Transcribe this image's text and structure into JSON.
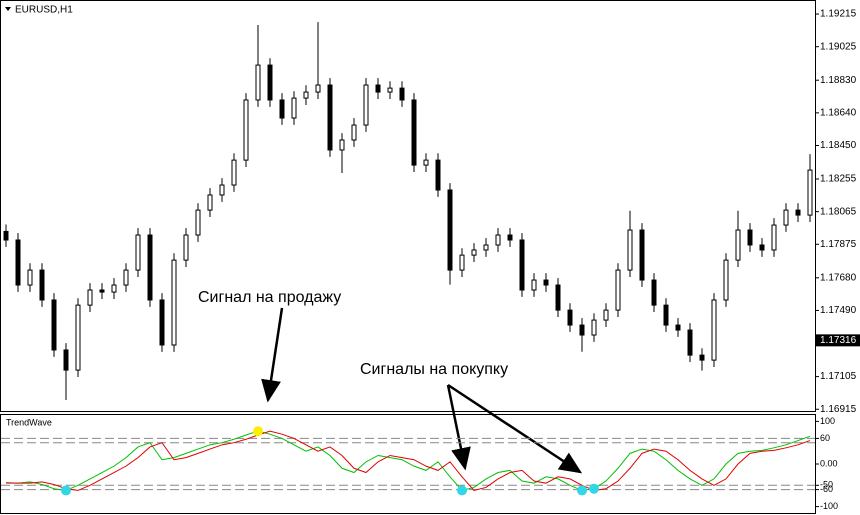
{
  "chart_data": [
    {
      "type": "candlestick",
      "title": "EURUSD,H1",
      "up_color": "#ffffff",
      "down_color": "#000000",
      "wick_color": "#000000",
      "ylim": [
        1.16899,
        1.19291
      ],
      "yticks": [
        1.19215,
        1.19025,
        {
          "value": 1.1883,
          "label": "1.18830"
        },
        {
          "value": 1.1864,
          "label": "1.18640"
        },
        {
          "value": 1.1845,
          "label": "1.18450"
        },
        1.18255,
        1.18065,
        1.17875,
        {
          "value": 1.1768,
          "label": "1.17680"
        },
        {
          "value": 1.1749,
          "label": "1.17490"
        },
        1.17105,
        1.16915
      ],
      "last_price": 1.17316,
      "annotations": [
        "Сигнал на продажу",
        "Сигналы на покупку"
      ],
      "ohlc": [
        [
          1.1795,
          1.1799,
          1.1786,
          1.179
        ],
        [
          1.179,
          1.1794,
          1.17598,
          1.17638
        ],
        [
          1.17638,
          1.17765,
          1.17598,
          1.17725
        ],
        [
          1.17725,
          1.17765,
          1.17511,
          1.17551
        ],
        [
          1.17551,
          1.17591,
          1.1722,
          1.1726
        ],
        [
          1.1726,
          1.173,
          1.16969,
          1.17143
        ],
        [
          1.17143,
          1.17561,
          1.17103,
          1.17521
        ],
        [
          1.17521,
          1.17649,
          1.17481,
          1.17609
        ],
        [
          1.17609,
          1.17649,
          1.17557,
          1.17597
        ],
        [
          1.17597,
          1.17678,
          1.17557,
          1.17638
        ],
        [
          1.17638,
          1.17765,
          1.17598,
          1.17725
        ],
        [
          1.17725,
          1.17969,
          1.17685,
          1.17929
        ],
        [
          1.17929,
          1.17969,
          1.17511,
          1.17551
        ],
        [
          1.17551,
          1.17591,
          1.17249,
          1.17289
        ],
        [
          1.17289,
          1.17823,
          1.17249,
          1.17783
        ],
        [
          1.17783,
          1.17969,
          1.17743,
          1.17929
        ],
        [
          1.17929,
          1.18114,
          1.17889,
          1.18074
        ],
        [
          1.18074,
          1.18202,
          1.18034,
          1.18162
        ],
        [
          1.18162,
          1.1826,
          1.18122,
          1.1822
        ],
        [
          1.1822,
          1.18405,
          1.1818,
          1.18365
        ],
        [
          1.18365,
          1.18755,
          1.18325,
          1.18715
        ],
        [
          1.18715,
          1.19151,
          1.18675,
          1.18918
        ],
        [
          1.18918,
          1.18958,
          1.18675,
          1.18715
        ],
        [
          1.18715,
          1.18755,
          1.1857,
          1.1861
        ],
        [
          1.1861,
          1.18766,
          1.1857,
          1.18726
        ],
        [
          1.18726,
          1.18801,
          1.18686,
          1.18761
        ],
        [
          1.18761,
          1.19168,
          1.18721,
          1.18802
        ],
        [
          1.18802,
          1.18842,
          1.18384,
          1.18424
        ],
        [
          1.18424,
          1.18522,
          1.1829,
          1.18482
        ],
        [
          1.18482,
          1.18609,
          1.18442,
          1.18569
        ],
        [
          1.18569,
          1.18842,
          1.18529,
          1.18802
        ],
        [
          1.18802,
          1.18842,
          1.18721,
          1.18761
        ],
        [
          1.18761,
          1.18824,
          1.18721,
          1.18784
        ],
        [
          1.18784,
          1.18824,
          1.18675,
          1.18715
        ],
        [
          1.18715,
          1.18755,
          1.18296,
          1.18336
        ],
        [
          1.18336,
          1.18405,
          1.18296,
          1.18365
        ],
        [
          1.18365,
          1.18405,
          1.18151,
          1.18191
        ],
        [
          1.18191,
          1.18231,
          1.1764,
          1.17725
        ],
        [
          1.17725,
          1.17852,
          1.17685,
          1.17812
        ],
        [
          1.17812,
          1.17882,
          1.17772,
          1.17842
        ],
        [
          1.17842,
          1.17911,
          1.17802,
          1.17871
        ],
        [
          1.17871,
          1.17969,
          1.17831,
          1.17929
        ],
        [
          1.17929,
          1.17969,
          1.1786,
          1.179
        ],
        [
          1.179,
          1.1794,
          1.17569,
          1.17609
        ],
        [
          1.17609,
          1.17707,
          1.17569,
          1.17667
        ],
        [
          1.17667,
          1.17707,
          1.17598,
          1.17638
        ],
        [
          1.17638,
          1.17678,
          1.17452,
          1.17492
        ],
        [
          1.17492,
          1.17532,
          1.17365,
          1.17405
        ],
        [
          1.17405,
          1.17445,
          1.1725,
          1.17347
        ],
        [
          1.17347,
          1.17474,
          1.17307,
          1.17434
        ],
        [
          1.17434,
          1.17532,
          1.17394,
          1.17492
        ],
        [
          1.17492,
          1.17765,
          1.17452,
          1.17725
        ],
        [
          1.17725,
          1.1807,
          1.17685,
          1.17958
        ],
        [
          1.17958,
          1.17998,
          1.17627,
          1.17667
        ],
        [
          1.17667,
          1.17707,
          1.17481,
          1.17521
        ],
        [
          1.17521,
          1.17561,
          1.17365,
          1.17405
        ],
        [
          1.17405,
          1.17445,
          1.17336,
          1.17376
        ],
        [
          1.17376,
          1.17416,
          1.1719,
          1.1723
        ],
        [
          1.1723,
          1.1727,
          1.1714,
          1.17201
        ],
        [
          1.17201,
          1.17591,
          1.17161,
          1.17551
        ],
        [
          1.17551,
          1.17823,
          1.17511,
          1.17783
        ],
        [
          1.17783,
          1.1807,
          1.17743,
          1.17958
        ],
        [
          1.17958,
          1.17998,
          1.17831,
          1.17871
        ],
        [
          1.17871,
          1.17911,
          1.17802,
          1.17842
        ],
        [
          1.17842,
          1.18027,
          1.17802,
          1.17987
        ],
        [
          1.17987,
          1.18114,
          1.17947,
          1.18074
        ],
        [
          1.18074,
          1.18114,
          1.18005,
          1.18045
        ],
        [
          1.18045,
          1.184,
          1.18005,
          1.18307
        ]
      ]
    },
    {
      "type": "line",
      "title": "TrendWave",
      "ylim": [
        -115,
        115
      ],
      "yticks": [
        100,
        60,
        {
          "value": 0,
          "label": "0.00"
        },
        -50,
        -60,
        -100
      ],
      "levels": [
        60,
        50,
        -50,
        -60
      ],
      "series": [
        {
          "color": "#00c000",
          "values": [
            -45,
            -45,
            -42,
            -48,
            -58,
            -62,
            -50,
            -35,
            -20,
            -5,
            15,
            40,
            50,
            10,
            15,
            25,
            35,
            45,
            50,
            58,
            68,
            77,
            70,
            60,
            45,
            30,
            40,
            20,
            -10,
            -20,
            5,
            20,
            15,
            10,
            -5,
            -15,
            5,
            -30,
            -62,
            -55,
            -35,
            -20,
            -15,
            -40,
            -45,
            -30,
            -35,
            -50,
            -62,
            -58,
            -40,
            -10,
            25,
            35,
            30,
            10,
            -15,
            -35,
            -50,
            -35,
            0,
            25,
            30,
            32,
            38,
            45,
            55,
            65
          ]
        },
        {
          "color": "#e00000",
          "values": [
            -44,
            -45,
            -45,
            -42,
            -48,
            -58,
            -62,
            -50,
            -35,
            -20,
            -5,
            15,
            40,
            50,
            10,
            15,
            25,
            35,
            45,
            50,
            58,
            68,
            77,
            70,
            60,
            45,
            30,
            40,
            20,
            -10,
            -20,
            5,
            20,
            15,
            10,
            -5,
            -15,
            5,
            -30,
            -62,
            -55,
            -35,
            -20,
            -15,
            -40,
            -45,
            -30,
            -35,
            -50,
            -62,
            -58,
            -40,
            -10,
            25,
            35,
            30,
            10,
            -15,
            -35,
            -50,
            -35,
            0,
            25,
            30,
            32,
            38,
            45,
            55
          ]
        }
      ],
      "dots": [
        {
          "color": "#ffee00",
          "values": [
            null,
            null,
            null,
            null,
            null,
            null,
            null,
            null,
            null,
            null,
            null,
            null,
            null,
            null,
            null,
            null,
            null,
            null,
            null,
            null,
            null,
            77,
            null,
            null,
            null,
            null,
            null,
            null,
            null,
            null,
            null,
            null,
            null,
            null,
            null,
            null,
            null,
            null,
            null,
            null,
            null,
            null,
            null,
            null,
            null,
            null,
            null,
            null,
            null,
            null,
            null,
            null,
            null,
            null,
            null,
            null,
            null,
            null,
            null,
            null,
            null,
            null,
            null,
            null,
            null,
            null,
            null,
            null
          ]
        },
        {
          "color": "#33d6e6",
          "values": [
            null,
            null,
            null,
            null,
            null,
            -62,
            null,
            null,
            null,
            null,
            null,
            null,
            null,
            null,
            null,
            null,
            null,
            null,
            null,
            null,
            null,
            null,
            null,
            null,
            null,
            null,
            null,
            null,
            null,
            null,
            null,
            null,
            null,
            null,
            null,
            null,
            null,
            null,
            -62,
            null,
            null,
            null,
            null,
            null,
            null,
            null,
            null,
            null,
            -62,
            -58,
            null,
            null,
            null,
            null,
            null,
            null,
            null,
            null,
            null,
            null,
            null,
            null,
            null,
            null,
            null,
            null,
            null,
            null
          ]
        }
      ]
    }
  ]
}
